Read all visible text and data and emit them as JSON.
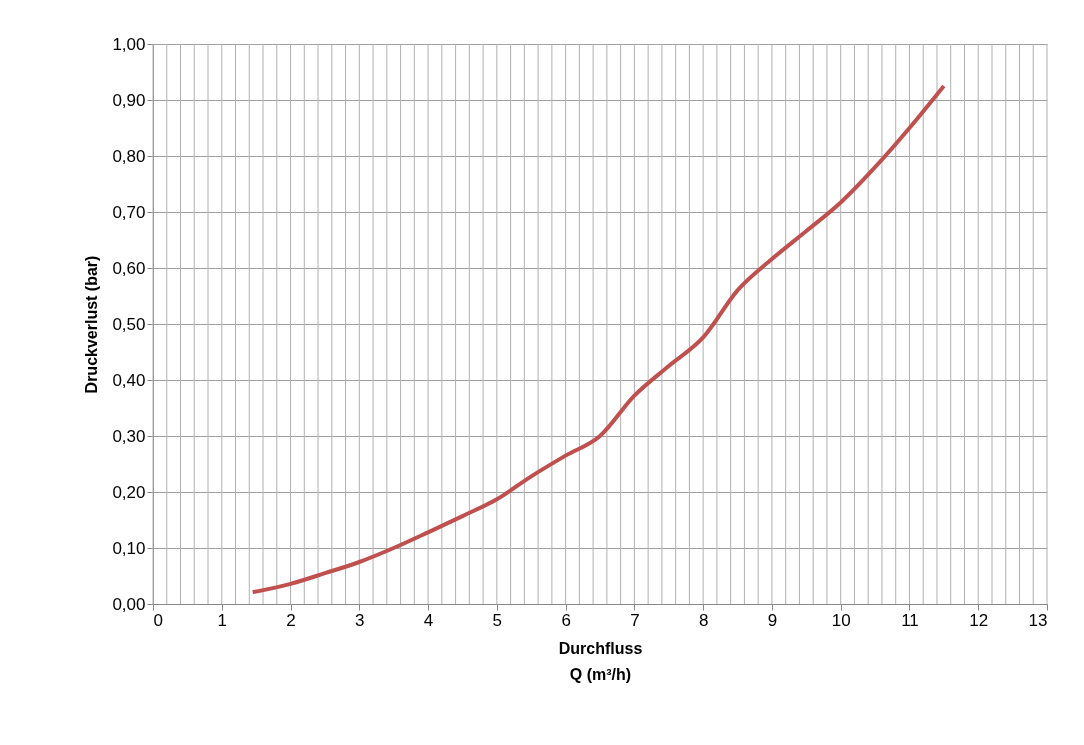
{
  "chart_data": {
    "type": "line",
    "xlabel": "Durchfluss\nQ (m³/h)",
    "ylabel": "Druckverlust (bar)",
    "series": [
      {
        "color": "#c0504d",
        "x": [
          1.45,
          2,
          2.5,
          3,
          3.5,
          4,
          4.5,
          5,
          5.5,
          6,
          6.5,
          7,
          7.5,
          8,
          8.5,
          9,
          9.5,
          10,
          10.5,
          11,
          11.5
        ],
        "values": [
          0.021,
          0.036,
          0.055,
          0.075,
          0.1,
          0.128,
          0.157,
          0.187,
          0.228,
          0.265,
          0.3,
          0.372,
          0.425,
          0.476,
          0.56,
          0.616,
          0.666,
          0.717,
          0.78,
          0.85,
          0.925
        ]
      }
    ],
    "xlim": [
      0,
      13
    ],
    "ylim": [
      0,
      1
    ],
    "xticks": [
      0,
      {
        "value": 0.2,
        "label": null
      },
      {
        "value": 0.4,
        "label": null
      },
      {
        "value": 0.6,
        "label": null
      },
      {
        "value": 0.8,
        "label": null
      },
      1,
      {
        "value": 1.2,
        "label": null
      },
      {
        "value": 1.4,
        "label": null
      },
      {
        "value": 1.6,
        "label": null
      },
      {
        "value": 1.8,
        "label": null
      },
      2,
      {
        "value": 2.2,
        "label": null
      },
      {
        "value": 2.4,
        "label": null
      },
      {
        "value": 2.6,
        "label": null
      },
      {
        "value": 2.8,
        "label": null
      },
      3,
      {
        "value": 3.2,
        "label": null
      },
      {
        "value": 3.4,
        "label": null
      },
      {
        "value": 3.6,
        "label": null
      },
      {
        "value": 3.8,
        "label": null
      },
      4,
      {
        "value": 4.2,
        "label": null
      },
      {
        "value": 4.4,
        "label": null
      },
      {
        "value": 4.6,
        "label": null
      },
      {
        "value": 4.8,
        "label": null
      },
      5,
      {
        "value": 5.2,
        "label": null
      },
      {
        "value": 5.4,
        "label": null
      },
      {
        "value": 5.6,
        "label": null
      },
      {
        "value": 5.8,
        "label": null
      },
      6,
      {
        "value": 6.2,
        "label": null
      },
      {
        "value": 6.4,
        "label": null
      },
      {
        "value": 6.6,
        "label": null
      },
      {
        "value": 6.8,
        "label": null
      },
      7,
      {
        "value": 7.2,
        "label": null
      },
      {
        "value": 7.4,
        "label": null
      },
      {
        "value": 7.6,
        "label": null
      },
      {
        "value": 7.8,
        "label": null
      },
      8,
      {
        "value": 8.2,
        "label": null
      },
      {
        "value": 8.4,
        "label": null
      },
      {
        "value": 8.6,
        "label": null
      },
      {
        "value": 8.8,
        "label": null
      },
      9,
      {
        "value": 9.2,
        "label": null
      },
      {
        "value": 9.4,
        "label": null
      },
      {
        "value": 9.6,
        "label": null
      },
      {
        "value": 9.8,
        "label": null
      },
      10,
      {
        "value": 10.2,
        "label": null
      },
      {
        "value": 10.4,
        "label": null
      },
      {
        "value": 10.6,
        "label": null
      },
      {
        "value": 10.8,
        "label": null
      },
      11,
      {
        "value": 11.2,
        "label": null
      },
      {
        "value": 11.4,
        "label": null
      },
      {
        "value": 11.6,
        "label": null
      },
      {
        "value": 11.8,
        "label": null
      },
      12,
      {
        "value": 12.2,
        "label": null
      },
      {
        "value": 12.4,
        "label": null
      },
      {
        "value": 12.6,
        "label": null
      },
      {
        "value": 12.8,
        "label": null
      },
      13
    ],
    "yticks": [
      {
        "value": 0,
        "label": "0,00"
      },
      {
        "value": 0.1,
        "label": "0,10"
      },
      {
        "value": 0.2,
        "label": "0,20"
      },
      {
        "value": 0.3,
        "label": "0,30"
      },
      {
        "value": 0.4,
        "label": "0,40"
      },
      {
        "value": 0.5,
        "label": "0,50"
      },
      {
        "value": 0.6,
        "label": "0,60"
      },
      {
        "value": 0.7,
        "label": "0,70"
      },
      {
        "value": 0.8,
        "label": "0,80"
      },
      {
        "value": 0.9,
        "label": "0,90"
      },
      {
        "value": 1,
        "label": "1,00"
      }
    ],
    "grid": true,
    "marker": "none",
    "line_style": "solid"
  }
}
